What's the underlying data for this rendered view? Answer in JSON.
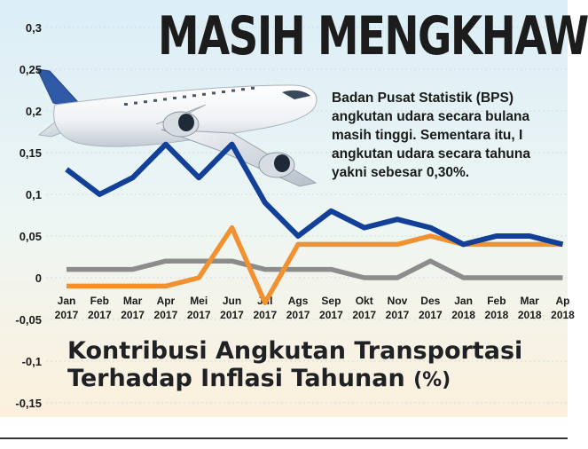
{
  "headline": "MASIH MENGKHAW",
  "body_lines": [
    "Badan Pusat Statistik (BPS)",
    "angkutan udara secara bulana",
    "masih tinggi. Sementara itu, I",
    "angkutan udara secara tahuna",
    "yakni sebesar 0,30%."
  ],
  "colors": {
    "series_navy": "#123f97",
    "series_orange": "#f2912f",
    "series_gray": "#8c8c8c",
    "panel_top": "#dbeef7",
    "panel_bottom": "#fcf0dc"
  },
  "chart_data": {
    "type": "line",
    "title": "Kontribusi Angkutan Transportasi Terhadap Inflasi Tahunan",
    "title_line1": "Kontribusi Angkutan Transportasi",
    "title_line2": "Terhadap Inflasi Tahunan",
    "title_unit": "(%)",
    "ylim": [
      -0.15,
      0.3
    ],
    "yticks": [
      -0.15,
      -0.1,
      -0.05,
      0,
      0.05,
      0.1,
      0.15,
      0.2,
      0.25,
      0.3
    ],
    "ytick_labels": [
      "-0,15",
      "-0,1",
      "-0,05",
      "0",
      "0,05",
      "0,1",
      "0,15",
      "0,2",
      "0,25",
      "0,3"
    ],
    "categories": [
      [
        "Jan",
        "2017"
      ],
      [
        "Feb",
        "2017"
      ],
      [
        "Mar",
        "2017"
      ],
      [
        "Apr",
        "2017"
      ],
      [
        "Mei",
        "2017"
      ],
      [
        "Jun",
        "2017"
      ],
      [
        "Jul",
        "2017"
      ],
      [
        "Ags",
        "2017"
      ],
      [
        "Sep",
        "2017"
      ],
      [
        "Okt",
        "2017"
      ],
      [
        "Nov",
        "2017"
      ],
      [
        "Des",
        "2017"
      ],
      [
        "Jan",
        "2018"
      ],
      [
        "Feb",
        "2018"
      ],
      [
        "Mar",
        "2018"
      ],
      [
        "Ap",
        "2018"
      ]
    ],
    "series": [
      {
        "color": "#123f97",
        "values": [
          0.13,
          0.1,
          0.12,
          0.16,
          0.12,
          0.16,
          0.09,
          0.05,
          0.08,
          0.06,
          0.07,
          0.06,
          0.04,
          0.05,
          0.05,
          0.04
        ]
      },
      {
        "color": "#f2912f",
        "values": [
          -0.01,
          -0.01,
          -0.01,
          -0.01,
          0.0,
          0.06,
          -0.03,
          0.04,
          0.04,
          0.04,
          0.04,
          0.05,
          0.04,
          0.04,
          0.04,
          0.04
        ]
      },
      {
        "color": "#8c8c8c",
        "values": [
          0.01,
          0.01,
          0.01,
          0.02,
          0.02,
          0.02,
          0.01,
          0.01,
          0.01,
          0.0,
          0.0,
          0.02,
          0.0,
          0.0,
          0.0,
          0.0
        ]
      }
    ]
  }
}
